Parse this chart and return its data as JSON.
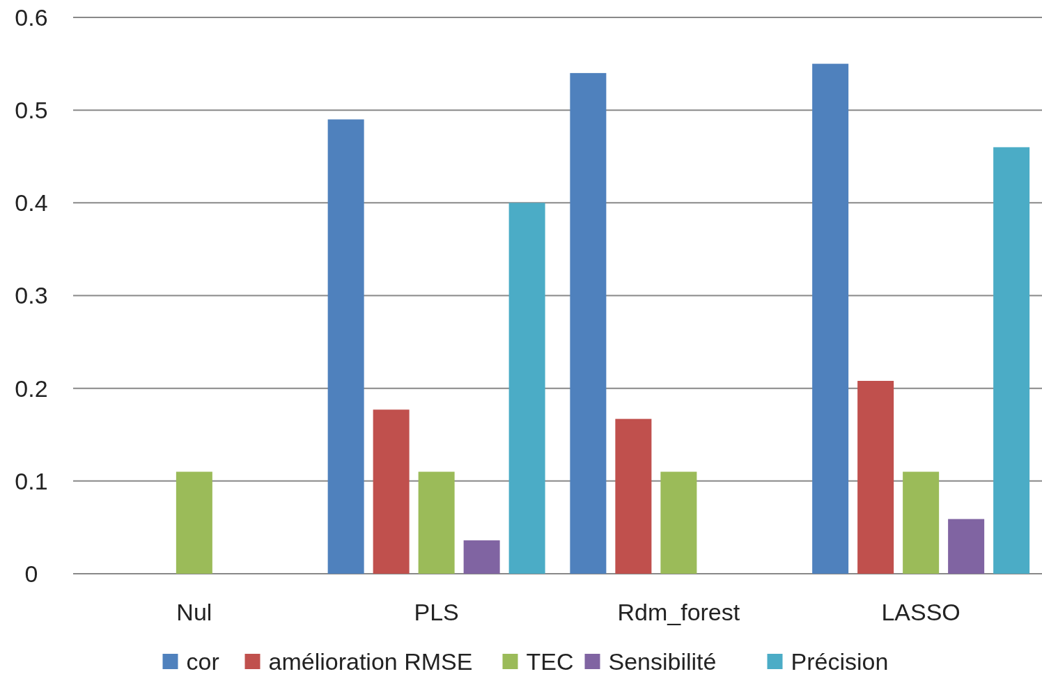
{
  "chart_data": {
    "type": "bar",
    "categories": [
      "Nul",
      "PLS",
      "Rdm_forest",
      "LASSO"
    ],
    "series": [
      {
        "name": "cor",
        "color": "#4f81bd",
        "values": [
          0,
          0.49,
          0.54,
          0.55
        ]
      },
      {
        "name": "amélioration RMSE",
        "color": "#c0504d",
        "values": [
          0,
          0.177,
          0.167,
          0.208
        ]
      },
      {
        "name": "TEC",
        "color": "#9bbb59",
        "values": [
          0.11,
          0.11,
          0.11,
          0.11
        ]
      },
      {
        "name": "Sensibilité",
        "color": "#8064a2",
        "values": [
          0,
          0.036,
          0,
          0.059
        ]
      },
      {
        "name": "Précision",
        "color": "#4bacc6",
        "values": [
          0,
          0.4,
          0,
          0.46
        ]
      }
    ],
    "ylim": [
      0,
      0.6
    ],
    "yticks": [
      0,
      0.1,
      0.2,
      0.3,
      0.4,
      0.5,
      0.6
    ],
    "grid": "y",
    "legend": "bottom"
  }
}
